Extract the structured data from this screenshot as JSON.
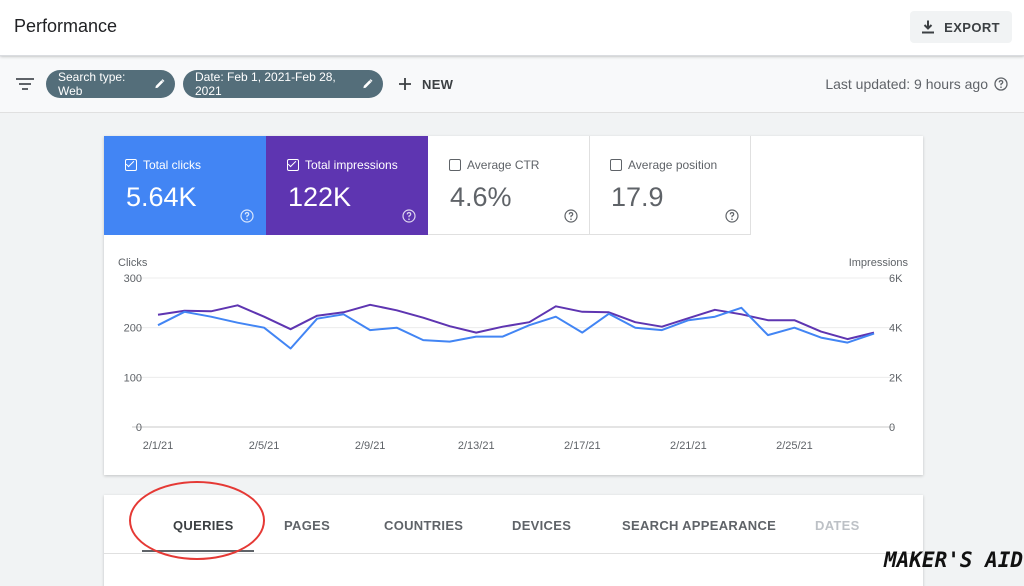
{
  "header": {
    "title": "Performance",
    "export_label": "EXPORT"
  },
  "filters": {
    "search_type": "Search type: Web",
    "date": "Date: Feb 1, 2021-Feb 28, 2021",
    "new_label": "NEW",
    "last_updated": "Last updated: 9 hours ago"
  },
  "metrics": [
    {
      "label": "Total clicks",
      "value": "5.64K",
      "checked": true,
      "color": "#4285f4"
    },
    {
      "label": "Total impressions",
      "value": "122K",
      "checked": true,
      "color": "#5e35b1"
    },
    {
      "label": "Average CTR",
      "value": "4.6%",
      "checked": false
    },
    {
      "label": "Average position",
      "value": "17.9",
      "checked": false
    }
  ],
  "chart_data": {
    "type": "line",
    "left_axis_label": "Clicks",
    "right_axis_label": "Impressions",
    "left_ticks": [
      "300",
      "200",
      "100",
      "0"
    ],
    "right_ticks": [
      "6K",
      "4K",
      "2K",
      "0"
    ],
    "ylim_left": [
      0,
      300
    ],
    "ylim_right": [
      0,
      6000
    ],
    "x_tick_labels": [
      "2/1/21",
      "2/5/21",
      "2/9/21",
      "2/13/21",
      "2/17/21",
      "2/21/21",
      "2/25/21"
    ],
    "series": [
      {
        "name": "Clicks",
        "axis": "left",
        "color": "#4285f4",
        "values": [
          205,
          232,
          222,
          210,
          200,
          158,
          218,
          227,
          195,
          200,
          175,
          172,
          182,
          182,
          205,
          222,
          190,
          228,
          200,
          195,
          215,
          222,
          240,
          185,
          200,
          180,
          170,
          188
        ]
      },
      {
        "name": "Impressions",
        "axis": "right",
        "color": "#5e35b1",
        "values": [
          4520,
          4680,
          4660,
          4900,
          4440,
          3940,
          4480,
          4620,
          4920,
          4700,
          4400,
          4060,
          3800,
          4040,
          4220,
          4860,
          4640,
          4620,
          4220,
          4040,
          4380,
          4720,
          4540,
          4300,
          4300,
          3840,
          3540,
          3800
        ]
      }
    ],
    "grid": true
  },
  "tabs": [
    {
      "label": "QUERIES"
    },
    {
      "label": "PAGES"
    },
    {
      "label": "COUNTRIES"
    },
    {
      "label": "DEVICES"
    },
    {
      "label": "SEARCH APPEARANCE"
    },
    {
      "label": "DATES"
    }
  ],
  "watermark": "MAKER'S AID"
}
